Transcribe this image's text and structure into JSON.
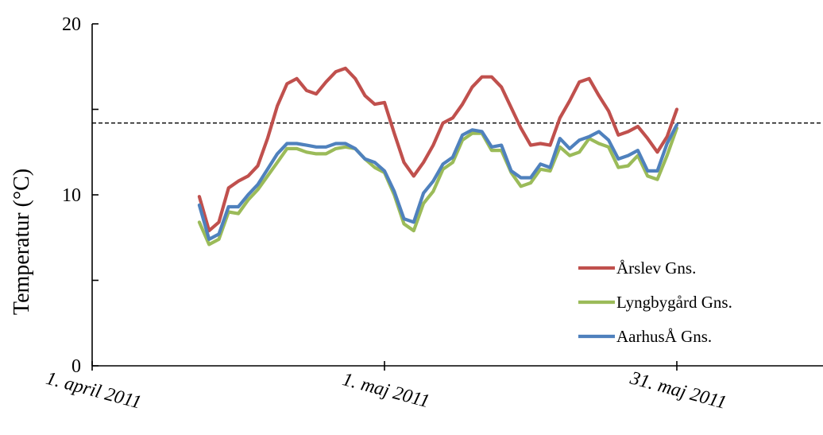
{
  "chart_data": {
    "type": "line",
    "title": "",
    "xlabel": "",
    "ylabel": "Temperatur (°C)",
    "ylim": [
      0,
      20
    ],
    "xlim": [
      "2011-04-01",
      "2011-06-15"
    ],
    "y_ticks": [
      "0",
      "10",
      "20"
    ],
    "x_ticks": [
      {
        "label": "1. april 2011",
        "date": "2011-04-01"
      },
      {
        "label": "1. maj 2011",
        "date": "2011-05-01"
      },
      {
        "label": "31. maj 2011",
        "date": "2011-05-31"
      }
    ],
    "reference_line": {
      "y": 14.2,
      "style": "dashed",
      "color": "#000000"
    },
    "grid": false,
    "legend": {
      "position": "bottom-right"
    },
    "x": [
      "2011-04-12",
      "2011-04-13",
      "2011-04-14",
      "2011-04-15",
      "2011-04-16",
      "2011-04-17",
      "2011-04-18",
      "2011-04-19",
      "2011-04-20",
      "2011-04-21",
      "2011-04-22",
      "2011-04-23",
      "2011-04-24",
      "2011-04-25",
      "2011-04-26",
      "2011-04-27",
      "2011-04-28",
      "2011-04-29",
      "2011-04-30",
      "2011-05-01",
      "2011-05-02",
      "2011-05-03",
      "2011-05-04",
      "2011-05-05",
      "2011-05-06",
      "2011-05-07",
      "2011-05-08",
      "2011-05-09",
      "2011-05-10",
      "2011-05-11",
      "2011-05-12",
      "2011-05-13",
      "2011-05-14",
      "2011-05-15",
      "2011-05-16",
      "2011-05-17",
      "2011-05-18",
      "2011-05-19",
      "2011-05-20",
      "2011-05-21",
      "2011-05-22",
      "2011-05-23",
      "2011-05-24",
      "2011-05-25",
      "2011-05-26",
      "2011-05-27",
      "2011-05-28",
      "2011-05-29",
      "2011-05-30",
      "2011-05-31"
    ],
    "series": [
      {
        "name": "Årslev Gns.",
        "color": "#C0504D",
        "values": [
          9.9,
          7.9,
          8.4,
          10.4,
          10.8,
          11.1,
          11.7,
          13.3,
          15.2,
          16.5,
          16.8,
          16.1,
          15.9,
          16.6,
          17.2,
          17.4,
          16.8,
          15.8,
          15.3,
          15.4,
          13.6,
          11.9,
          11.1,
          11.9,
          12.9,
          14.2,
          14.5,
          15.3,
          16.3,
          16.9,
          16.9,
          16.3,
          15.1,
          13.9,
          12.9,
          13.0,
          12.9,
          14.5,
          15.5,
          16.6,
          16.8,
          15.8,
          14.9,
          13.5,
          13.7,
          14.0,
          13.3,
          12.5,
          13.4,
          15.0
        ]
      },
      {
        "name": "Lyngbygård Gns.",
        "color": "#9BBB59",
        "values": [
          8.4,
          7.1,
          7.4,
          9.0,
          8.9,
          9.7,
          10.3,
          11.1,
          11.9,
          12.7,
          12.7,
          12.5,
          12.4,
          12.4,
          12.7,
          12.8,
          12.7,
          12.1,
          11.6,
          11.3,
          10.0,
          8.3,
          7.9,
          9.5,
          10.2,
          11.5,
          11.9,
          13.2,
          13.6,
          13.6,
          12.6,
          12.6,
          11.3,
          10.5,
          10.7,
          11.5,
          11.4,
          12.8,
          12.3,
          12.5,
          13.3,
          13.0,
          12.8,
          11.6,
          11.7,
          12.3,
          11.1,
          10.9,
          12.3,
          13.9
        ]
      },
      {
        "name": "AarhusÅ Gns.",
        "color": "#4F81BD",
        "values": [
          9.4,
          7.4,
          7.7,
          9.3,
          9.3,
          10.0,
          10.6,
          11.5,
          12.4,
          13.0,
          13.0,
          12.9,
          12.8,
          12.8,
          13.0,
          13.0,
          12.7,
          12.1,
          11.9,
          11.4,
          10.2,
          8.6,
          8.4,
          10.1,
          10.8,
          11.8,
          12.2,
          13.5,
          13.8,
          13.7,
          12.8,
          12.9,
          11.4,
          11.0,
          11.0,
          11.8,
          11.6,
          13.3,
          12.7,
          13.2,
          13.4,
          13.7,
          13.2,
          12.1,
          12.3,
          12.6,
          11.4,
          11.4,
          13.0,
          14.1
        ]
      }
    ]
  }
}
